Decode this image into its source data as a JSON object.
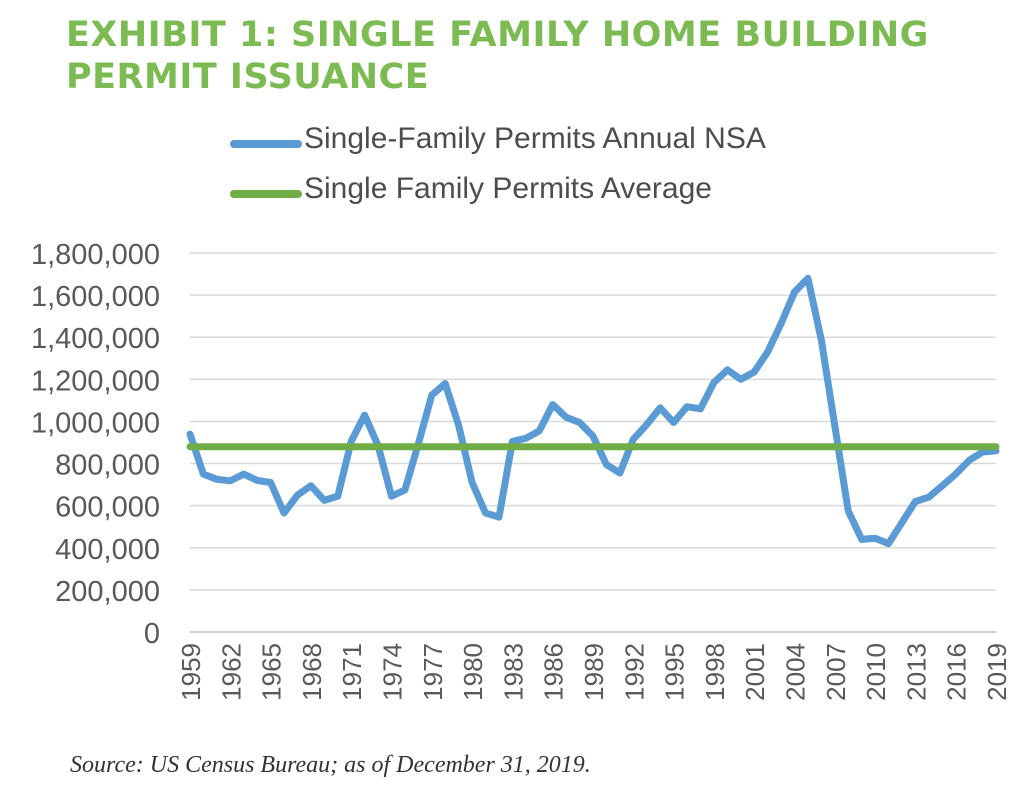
{
  "title_line1": "EXHIBIT 1: SINGLE FAMILY HOME BUILDING",
  "title_line2": "PERMIT ISSUANCE",
  "source": "Source: US Census Bureau; as of December 31, 2019.",
  "colors": {
    "title": "#7cbb52",
    "series_permits": "#5b9bd5",
    "series_average": "#70ad47",
    "grid": "#d9d9d9",
    "axis_text": "#595959"
  },
  "chart_data": {
    "type": "line",
    "title": "",
    "xlabel": "",
    "ylabel": "",
    "ylim": [
      0,
      1800000
    ],
    "y_ticks": [
      0,
      200000,
      400000,
      600000,
      800000,
      1000000,
      1200000,
      1400000,
      1600000,
      1800000
    ],
    "y_tick_labels": [
      "0",
      "200,000",
      "400,000",
      "600,000",
      "800,000",
      "1,000,000",
      "1,200,000",
      "1,400,000",
      "1,600,000",
      "1,800,000"
    ],
    "x_tick_labels": [
      "1959",
      "1962",
      "1965",
      "1968",
      "1971",
      "1974",
      "1977",
      "1980",
      "1983",
      "1986",
      "1989",
      "1992",
      "1995",
      "1998",
      "2001",
      "2004",
      "2007",
      "2010",
      "2013",
      "2016",
      "2019"
    ],
    "grid": "horizontal",
    "legend_position": "top",
    "x": [
      1959,
      1960,
      1961,
      1962,
      1963,
      1964,
      1965,
      1966,
      1967,
      1968,
      1969,
      1970,
      1971,
      1972,
      1973,
      1974,
      1975,
      1976,
      1977,
      1978,
      1979,
      1980,
      1981,
      1982,
      1983,
      1984,
      1985,
      1986,
      1987,
      1988,
      1989,
      1990,
      1991,
      1992,
      1993,
      1994,
      1995,
      1996,
      1997,
      1998,
      1999,
      2000,
      2001,
      2002,
      2003,
      2004,
      2005,
      2006,
      2007,
      2008,
      2009,
      2010,
      2011,
      2012,
      2013,
      2014,
      2015,
      2016,
      2017,
      2018,
      2019
    ],
    "series": [
      {
        "name": "Single-Family Permits Annual NSA",
        "values": [
          940000,
          750000,
          725000,
          718000,
          750000,
          720000,
          710000,
          565000,
          650000,
          695000,
          625000,
          645000,
          905000,
          1030000,
          885000,
          645000,
          675000,
          895000,
          1125000,
          1180000,
          980000,
          710000,
          565000,
          545000,
          905000,
          920000,
          955000,
          1080000,
          1020000,
          995000,
          930000,
          795000,
          755000,
          915000,
          985000,
          1065000,
          995000,
          1070000,
          1060000,
          1185000,
          1245000,
          1200000,
          1235000,
          1330000,
          1465000,
          1615000,
          1680000,
          1385000,
          980000,
          575000,
          440000,
          445000,
          420000,
          520000,
          620000,
          640000,
          695000,
          750000,
          815000,
          855000,
          860000
        ]
      },
      {
        "name": "Single Family Permits Average",
        "values": [
          880000,
          880000,
          880000,
          880000,
          880000,
          880000,
          880000,
          880000,
          880000,
          880000,
          880000,
          880000,
          880000,
          880000,
          880000,
          880000,
          880000,
          880000,
          880000,
          880000,
          880000,
          880000,
          880000,
          880000,
          880000,
          880000,
          880000,
          880000,
          880000,
          880000,
          880000,
          880000,
          880000,
          880000,
          880000,
          880000,
          880000,
          880000,
          880000,
          880000,
          880000,
          880000,
          880000,
          880000,
          880000,
          880000,
          880000,
          880000,
          880000,
          880000,
          880000,
          880000,
          880000,
          880000,
          880000,
          880000,
          880000,
          880000,
          880000,
          880000,
          880000
        ]
      }
    ]
  }
}
